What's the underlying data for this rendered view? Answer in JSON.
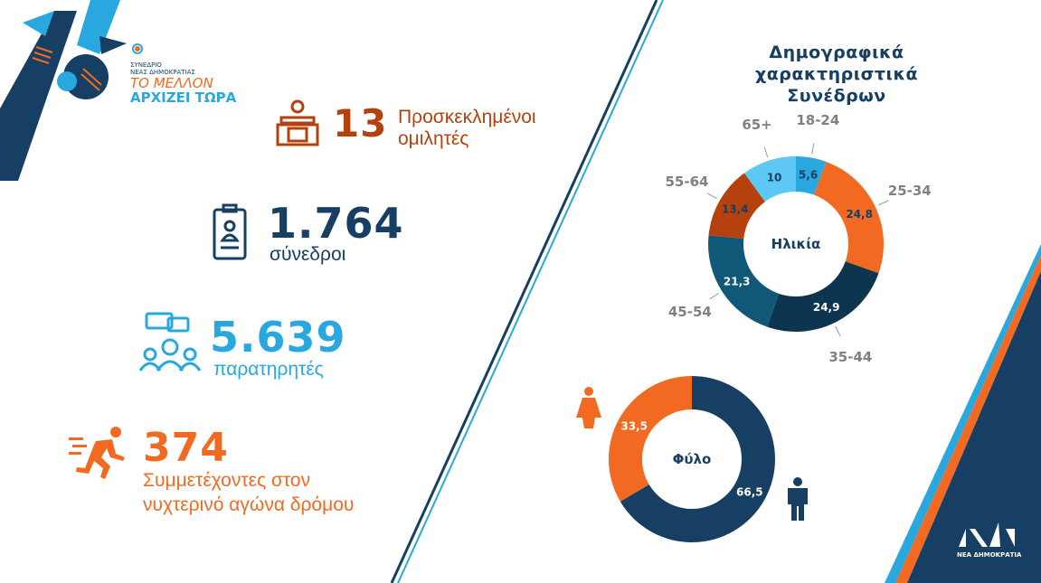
{
  "logo": {
    "line1": "ΣΥΝΕΔΡΙΟ",
    "line2": "ΝΕΑΣ ΔΗΜΟΚΡΑΤΙΑΣ",
    "slogan1": "ΤΟ ΜΕΛΛΟΝ",
    "slogan2": "ΑΡΧΙΖΕΙ ΤΩΡΑ"
  },
  "stats": [
    {
      "number": "13",
      "label1": "Προσκεκλημένοι",
      "label2": "ομιλητές",
      "icon": "podium-icon",
      "color": "#b5420e"
    },
    {
      "number": "1.764",
      "label1": "σύνεδροι",
      "label2": "",
      "icon": "badge-icon",
      "color": "#173f63"
    },
    {
      "number": "5.639",
      "label1": "παρατηρητές",
      "label2": "",
      "icon": "audience-icon",
      "color": "#29a8e0"
    },
    {
      "number": "374",
      "label1": "Συμμετέχοντες στον",
      "label2": "νυχτερινό αγώνα δρόμου",
      "icon": "runner-icon",
      "color": "#f26a22"
    }
  ],
  "title": {
    "line1": "Δημογραφικά",
    "line2": "χαρακτηριστικά",
    "line3": "Συνέδρων"
  },
  "footer_logo": "ΝΕΑ ΔΗΜΟΚΡΑΤΙΑ",
  "chart_data": [
    {
      "type": "pie",
      "title": "Ηλικία",
      "categories": [
        "18-24",
        "25-34",
        "35-44",
        "45-54",
        "55-64",
        "65+"
      ],
      "values": [
        5.6,
        24.8,
        24.9,
        21.3,
        13.4,
        10
      ],
      "labels": [
        "5,6",
        "24,8",
        "24,9",
        "21,3",
        "13,4",
        "10"
      ],
      "colors": [
        "#29a8e0",
        "#f26a22",
        "#0d3550",
        "#0f5878",
        "#b5420e",
        "#5cc8f3"
      ]
    },
    {
      "type": "pie",
      "title": "Φύλο",
      "categories": [
        "Άνδρες",
        "Γυναίκες"
      ],
      "values": [
        66.5,
        33.5
      ],
      "labels": [
        "66,5",
        "33,5"
      ],
      "colors": [
        "#173f63",
        "#f26a22"
      ]
    }
  ]
}
